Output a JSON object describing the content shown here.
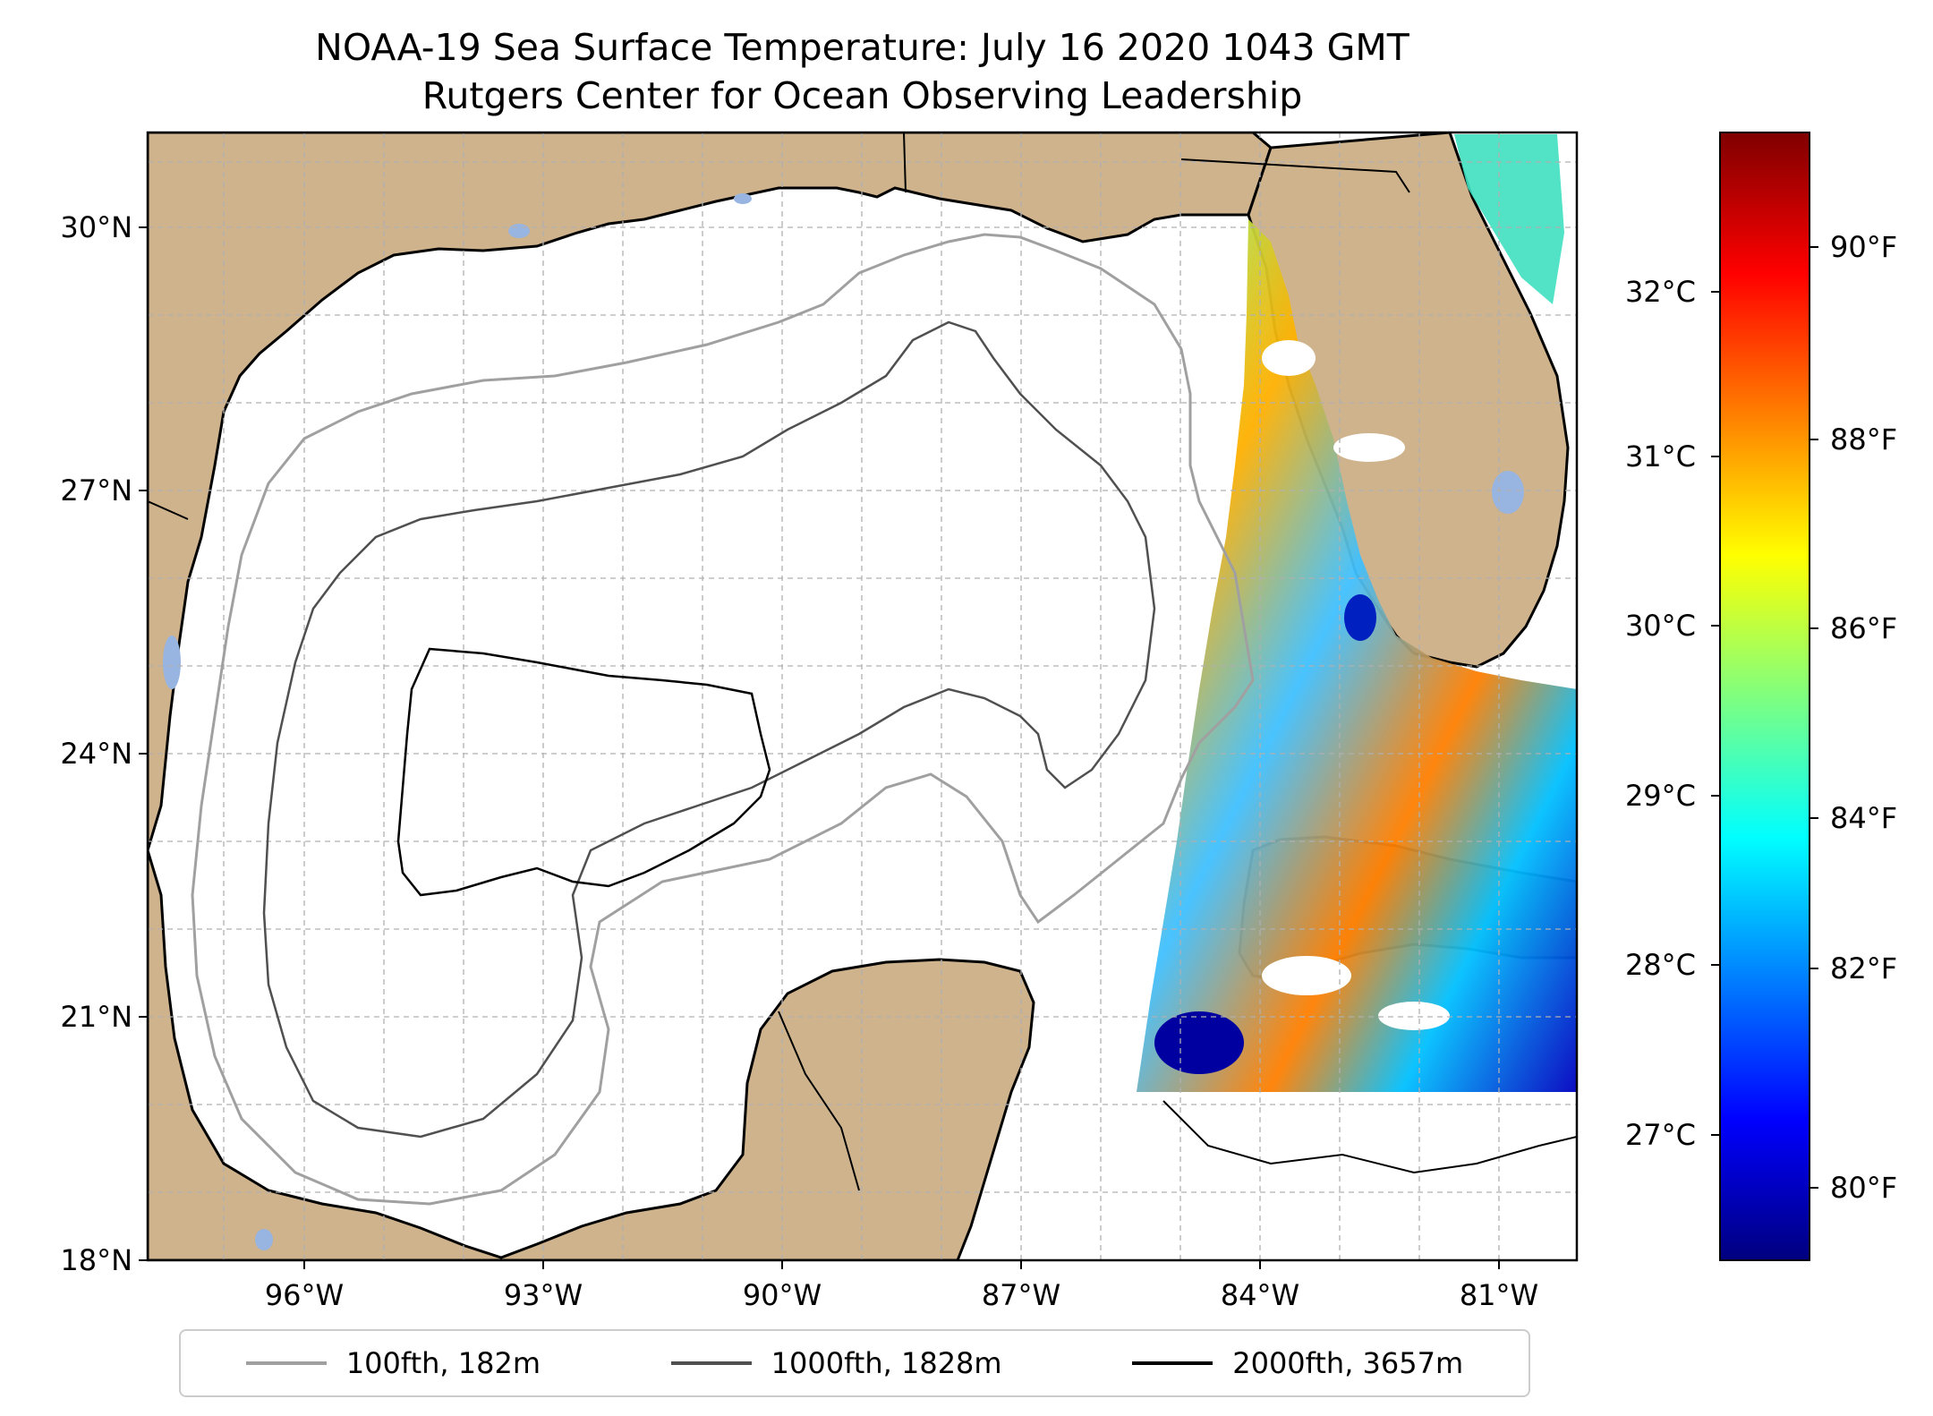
{
  "title_line1": "NOAA-19 Sea Surface Temperature: July 16 2020 1043 GMT",
  "title_line2": "Rutgers Center for Ocean Observing Leadership",
  "map": {
    "lat_labels": [
      "18°N",
      "21°N",
      "24°N",
      "27°N",
      "30°N"
    ],
    "lon_labels": [
      "96°W",
      "93°W",
      "90°W",
      "87°W",
      "84°W",
      "81°W"
    ],
    "land_color": "#cfb38d",
    "lake_color": "#98b4e0",
    "ocean_color": "#ffffff"
  },
  "colorbar": {
    "celsius_labels": [
      "27°C",
      "28°C",
      "29°C",
      "30°C",
      "31°C",
      "32°C"
    ],
    "fahrenheit_labels": [
      "80°F",
      "82°F",
      "84°F",
      "86°F",
      "88°F",
      "90°F"
    ],
    "colormap": "jet",
    "colors": [
      "#00007f",
      "#0000ff",
      "#007fff",
      "#00ffff",
      "#7fff7f",
      "#ffff00",
      "#ff7f00",
      "#ff0000",
      "#7f0000"
    ]
  },
  "legend": {
    "items": [
      {
        "label": "100fth, 182m",
        "color": "#a0a0a0"
      },
      {
        "label": "1000fth, 1828m",
        "color": "#505050"
      },
      {
        "label": "2000fth, 3657m",
        "color": "#000000"
      }
    ]
  }
}
